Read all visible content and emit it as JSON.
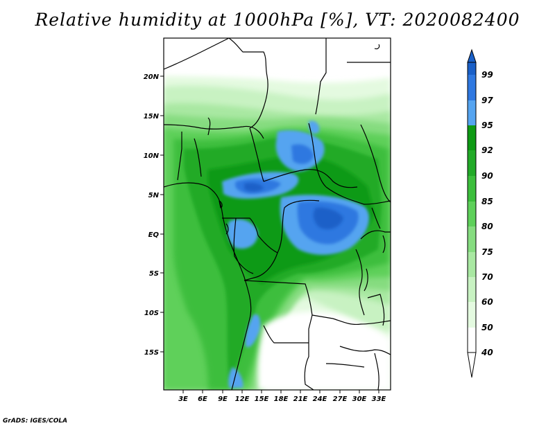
{
  "title": "Relative humidity at 1000hPa [%], VT: 2020082400",
  "credit": "GrADS: IGES/COLA",
  "lat_labels": [
    "20N",
    "15N",
    "10N",
    "5N",
    "EQ",
    "5S",
    "10S",
    "15S"
  ],
  "lon_labels": [
    "3E",
    "6E",
    "9E",
    "12E",
    "15E",
    "18E",
    "21E",
    "24E",
    "27E",
    "30E",
    "33E"
  ],
  "colorbar": {
    "labels": [
      "99",
      "97",
      "95",
      "92",
      "90",
      "85",
      "80",
      "75",
      "70",
      "60",
      "50",
      "40"
    ],
    "colors": [
      "#1a60c8",
      "#2f78e0",
      "#55a4f0",
      "#0e9a14",
      "#22aa28",
      "#3cbe3c",
      "#5ed05a",
      "#86dc80",
      "#a9e8a2",
      "#c8f2c2",
      "#e4fae0",
      "#ffffff"
    ]
  },
  "palette": {
    "white": "#ffffff",
    "g50": "#e4fae0",
    "g60": "#c8f2c2",
    "g70": "#a9e8a2",
    "g75": "#86dc80",
    "g80": "#5ed05a",
    "g85": "#3cbe3c",
    "g90": "#22aa28",
    "g92": "#0e9a14",
    "b95": "#55a4f0",
    "b97": "#2f78e0",
    "b99": "#1a60c8"
  }
}
